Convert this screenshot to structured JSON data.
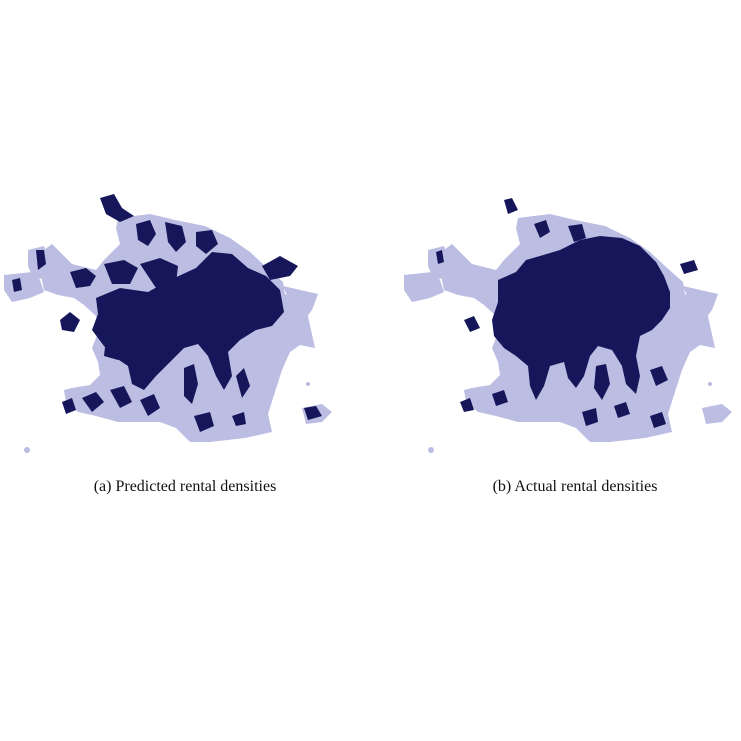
{
  "figure": {
    "panels": [
      {
        "id": "a",
        "caption": "(a) Predicted rental densities"
      },
      {
        "id": "b",
        "caption": "(b) Actual rental densities"
      }
    ]
  },
  "colors": {
    "low_density": "#bcbde3",
    "high_density": "#15175a",
    "background": "#ffffff"
  }
}
